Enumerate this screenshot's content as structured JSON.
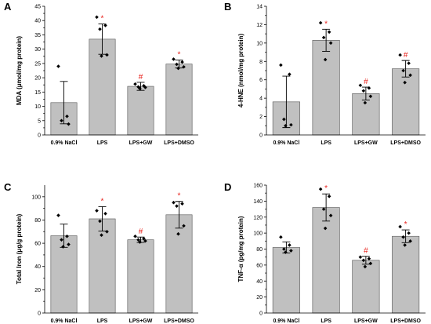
{
  "chart_data": [
    {
      "panel": "A",
      "type": "bar",
      "ylabel": "MDA (μmol/mg protein)",
      "ylim": [
        0,
        45
      ],
      "yticks": [
        0,
        5,
        10,
        15,
        20,
        25,
        30,
        35,
        40,
        45
      ],
      "categories": [
        "0.9% NaCl",
        "LPS",
        "LPS+GW",
        "LPS+DMSO"
      ],
      "values": [
        11.3,
        33.5,
        17.0,
        24.8
      ],
      "errors": [
        7.4,
        5.3,
        1.4,
        1.4
      ],
      "points": [
        [
          24.0,
          6.5,
          5.0,
          3.8
        ],
        [
          41.2,
          38.3,
          37.0,
          28.0,
          27.6
        ],
        [
          17.8,
          17.2,
          16.8,
          16.6,
          16.2
        ],
        [
          26.5,
          25.5,
          24.7,
          23.8,
          23.3
        ]
      ],
      "markers": [
        "",
        "*",
        "#",
        "*"
      ],
      "colors": {
        "bar": "#c0c0c0",
        "marker": "#e8231d"
      }
    },
    {
      "panel": "B",
      "type": "bar",
      "ylabel": "4-HNE (nmol/mg protein)",
      "ylim": [
        0,
        14
      ],
      "yticks": [
        0,
        2,
        4,
        6,
        8,
        10,
        12,
        14
      ],
      "categories": [
        "0.9% NaCl",
        "LPS",
        "LPS+GW",
        "LPS+DMSO"
      ],
      "values": [
        3.6,
        10.3,
        4.5,
        7.2
      ],
      "errors": [
        2.8,
        1.2,
        0.7,
        0.9
      ],
      "points": [
        [
          7.6,
          6.6,
          1.7,
          1.1,
          1.0
        ],
        [
          12.2,
          11.2,
          10.6,
          10.0,
          8.2
        ],
        [
          5.4,
          5.1,
          4.8,
          4.2,
          3.5
        ],
        [
          8.7,
          7.8,
          7.0,
          6.5,
          5.7
        ]
      ],
      "markers": [
        "",
        "*",
        "#",
        "#"
      ],
      "colors": {
        "bar": "#c0c0c0",
        "marker": "#e8231d"
      }
    },
    {
      "panel": "C",
      "type": "bar",
      "ylabel": "Total Iron (μg/g protein)",
      "ylim": [
        0,
        110
      ],
      "yticks": [
        0,
        20,
        40,
        60,
        80,
        100
      ],
      "categories": [
        "0.9% NaCl",
        "LPS",
        "LPS+GW",
        "LPS+DMSO"
      ],
      "values": [
        66.5,
        81.0,
        63.0,
        84.5
      ],
      "errors": [
        10.0,
        10.5,
        2.3,
        11.5
      ],
      "points": [
        [
          84.0,
          66.0,
          63.0,
          59.0,
          57.0
        ],
        [
          88.0,
          85.5,
          79.0,
          70.0,
          67.0
        ],
        [
          66.0,
          64.0,
          63.0,
          62.0,
          61.0
        ],
        [
          95.0,
          94.0,
          92.0,
          75.0,
          68.0
        ]
      ],
      "markers": [
        "",
        "*",
        "#",
        "*"
      ],
      "colors": {
        "bar": "#c0c0c0",
        "marker": "#e8231d"
      }
    },
    {
      "panel": "D",
      "type": "bar",
      "ylabel": "TNF-α (pg/mg protein)",
      "ylim": [
        0,
        160
      ],
      "yticks": [
        0,
        20,
        40,
        60,
        80,
        100,
        120,
        140,
        160
      ],
      "categories": [
        "0.9% NaCl",
        "LPS",
        "LPS+GW",
        "LPS+DMSO"
      ],
      "values": [
        82.0,
        132.0,
        66.0,
        96.0
      ],
      "errors": [
        7.0,
        17.0,
        5.0,
        8.0
      ],
      "points": [
        [
          95.0,
          85.0,
          80.0,
          78.0,
          76.0
        ],
        [
          155.0,
          146.0,
          130.0,
          122.0,
          106.0
        ],
        [
          70.0,
          68.0,
          66.0,
          62.0,
          58.0
        ],
        [
          108.0,
          100.0,
          95.0,
          90.0,
          85.0
        ]
      ],
      "markers": [
        "",
        "*",
        "#",
        "*"
      ],
      "colors": {
        "bar": "#c0c0c0",
        "marker": "#e8231d"
      }
    }
  ]
}
